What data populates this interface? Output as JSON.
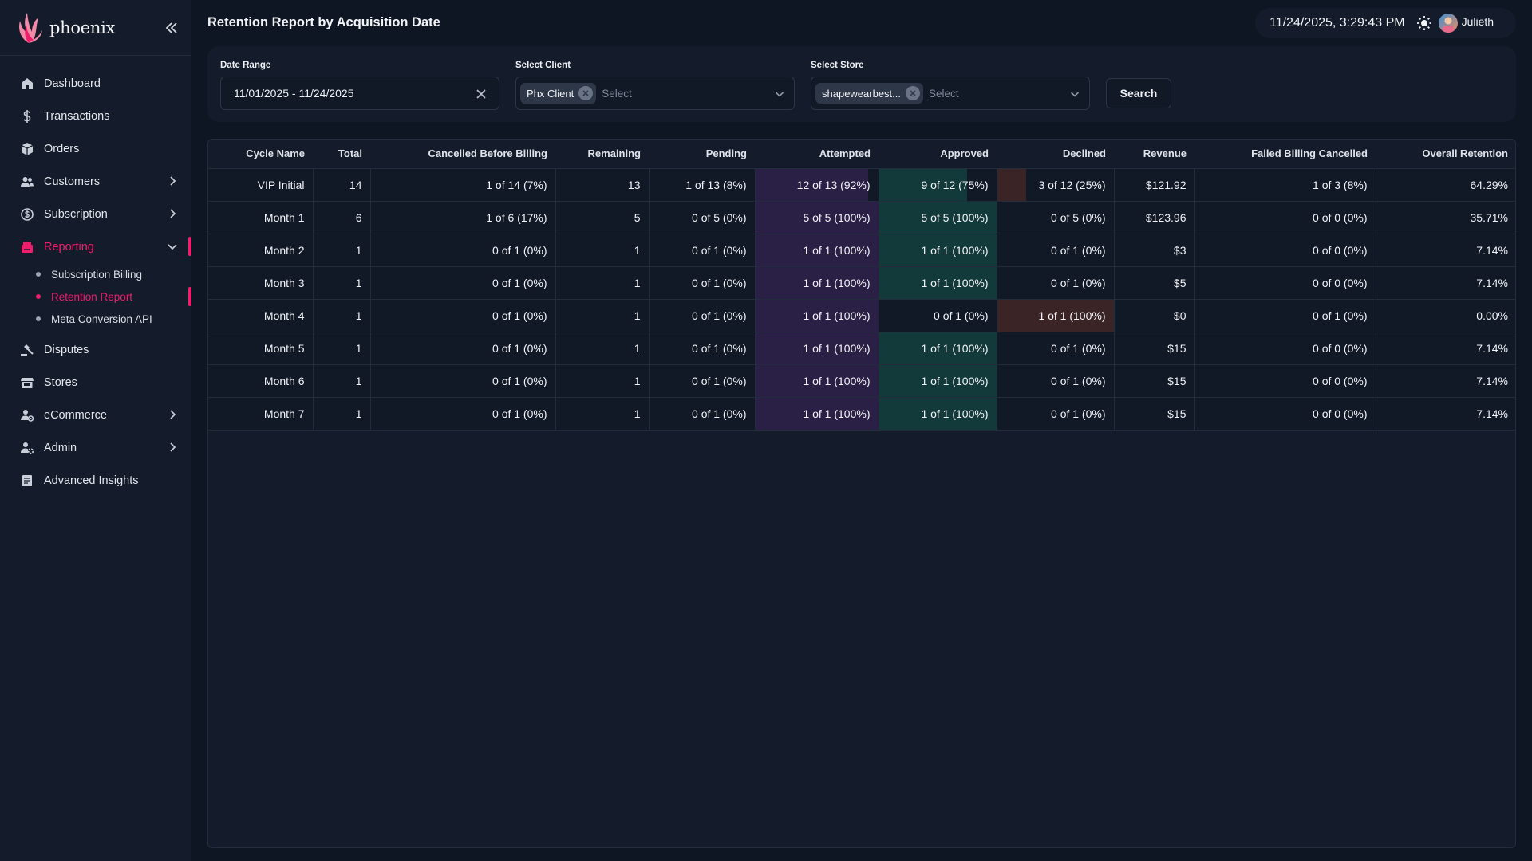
{
  "brand": {
    "name": "phoenix"
  },
  "nav": {
    "items": [
      {
        "key": "dashboard",
        "label": "Dashboard",
        "icon": "home-icon",
        "chevron": false
      },
      {
        "key": "transactions",
        "label": "Transactions",
        "icon": "dollar-icon",
        "chevron": false
      },
      {
        "key": "orders",
        "label": "Orders",
        "icon": "box-icon",
        "chevron": false
      },
      {
        "key": "customers",
        "label": "Customers",
        "icon": "users-icon",
        "chevron": true
      },
      {
        "key": "subscription",
        "label": "Subscription",
        "icon": "subscription-icon",
        "chevron": true
      },
      {
        "key": "reporting",
        "label": "Reporting",
        "icon": "report-icon",
        "chevron": true,
        "active": true
      },
      {
        "key": "disputes",
        "label": "Disputes",
        "icon": "gavel-icon",
        "chevron": false
      },
      {
        "key": "stores",
        "label": "Stores",
        "icon": "store-icon",
        "chevron": false
      },
      {
        "key": "ecommerce",
        "label": "eCommerce",
        "icon": "ecommerce-icon",
        "chevron": true
      },
      {
        "key": "admin",
        "label": "Admin",
        "icon": "admin-icon",
        "chevron": true
      },
      {
        "key": "advanced",
        "label": "Advanced Insights",
        "icon": "insights-icon",
        "chevron": false
      }
    ],
    "reporting_sub": [
      {
        "label": "Subscription Billing",
        "active": false
      },
      {
        "label": "Retention Report",
        "active": true
      },
      {
        "label": "Meta Conversion API",
        "active": false
      }
    ]
  },
  "header": {
    "title": "Retention Report by Acquisition Date",
    "datetime": "11/24/2025, 3:29:43 PM",
    "user": "Julieth"
  },
  "filters": {
    "date_label": "Date Range",
    "date_value": "11/01/2025 - 11/24/2025",
    "client_label": "Select Client",
    "client_chip": "Phx Client",
    "client_placeholder": "Select",
    "store_label": "Select Store",
    "store_chip": "shapewearbest...",
    "store_placeholder": "Select",
    "search_label": "Search"
  },
  "colors": {
    "accent": "#ee1e6c",
    "attempted_fill": "#2a1f45",
    "approved_fill": "#133a3a",
    "declined_fill": "#3a2426"
  },
  "table": {
    "columns": [
      "Cycle Name",
      "Total",
      "Cancelled Before Billing",
      "Remaining",
      "Pending",
      "Attempted",
      "Approved",
      "Declined",
      "Revenue",
      "Failed Billing Cancelled",
      "Overall Retention"
    ],
    "rows": [
      {
        "cycle": "VIP Initial",
        "total": "14",
        "cancelled": "1 of 14 (7%)",
        "remaining": "13",
        "pending": "1 of 13 (8%)",
        "attempted": "12 of 13 (92%)",
        "attempted_pct": 92,
        "approved": "9 of 12 (75%)",
        "approved_pct": 75,
        "declined": "3 of 12 (25%)",
        "declined_pct": 25,
        "revenue": "$121.92",
        "failed": "1 of 3 (8%)",
        "retention": "64.29%"
      },
      {
        "cycle": "Month 1",
        "total": "6",
        "cancelled": "1 of 6 (17%)",
        "remaining": "5",
        "pending": "0 of 5 (0%)",
        "attempted": "5 of 5 (100%)",
        "attempted_pct": 100,
        "approved": "5 of 5 (100%)",
        "approved_pct": 100,
        "declined": "0 of 5 (0%)",
        "declined_pct": 0,
        "revenue": "$123.96",
        "failed": "0 of 0 (0%)",
        "retention": "35.71%"
      },
      {
        "cycle": "Month 2",
        "total": "1",
        "cancelled": "0 of 1 (0%)",
        "remaining": "1",
        "pending": "0 of 1 (0%)",
        "attempted": "1 of 1 (100%)",
        "attempted_pct": 100,
        "approved": "1 of 1 (100%)",
        "approved_pct": 100,
        "declined": "0 of 1 (0%)",
        "declined_pct": 0,
        "revenue": "$3",
        "failed": "0 of 0 (0%)",
        "retention": "7.14%"
      },
      {
        "cycle": "Month 3",
        "total": "1",
        "cancelled": "0 of 1 (0%)",
        "remaining": "1",
        "pending": "0 of 1 (0%)",
        "attempted": "1 of 1 (100%)",
        "attempted_pct": 100,
        "approved": "1 of 1 (100%)",
        "approved_pct": 100,
        "declined": "0 of 1 (0%)",
        "declined_pct": 0,
        "revenue": "$5",
        "failed": "0 of 0 (0%)",
        "retention": "7.14%"
      },
      {
        "cycle": "Month 4",
        "total": "1",
        "cancelled": "0 of 1 (0%)",
        "remaining": "1",
        "pending": "0 of 1 (0%)",
        "attempted": "1 of 1 (100%)",
        "attempted_pct": 100,
        "approved": "0 of 1 (0%)",
        "approved_pct": 0,
        "declined": "1 of 1 (100%)",
        "declined_pct": 100,
        "revenue": "$0",
        "failed": "0 of 1 (0%)",
        "retention": "0.00%"
      },
      {
        "cycle": "Month 5",
        "total": "1",
        "cancelled": "0 of 1 (0%)",
        "remaining": "1",
        "pending": "0 of 1 (0%)",
        "attempted": "1 of 1 (100%)",
        "attempted_pct": 100,
        "approved": "1 of 1 (100%)",
        "approved_pct": 100,
        "declined": "0 of 1 (0%)",
        "declined_pct": 0,
        "revenue": "$15",
        "failed": "0 of 0 (0%)",
        "retention": "7.14%"
      },
      {
        "cycle": "Month 6",
        "total": "1",
        "cancelled": "0 of 1 (0%)",
        "remaining": "1",
        "pending": "0 of 1 (0%)",
        "attempted": "1 of 1 (100%)",
        "attempted_pct": 100,
        "approved": "1 of 1 (100%)",
        "approved_pct": 100,
        "declined": "0 of 1 (0%)",
        "declined_pct": 0,
        "revenue": "$15",
        "failed": "0 of 0 (0%)",
        "retention": "7.14%"
      },
      {
        "cycle": "Month 7",
        "total": "1",
        "cancelled": "0 of 1 (0%)",
        "remaining": "1",
        "pending": "0 of 1 (0%)",
        "attempted": "1 of 1 (100%)",
        "attempted_pct": 100,
        "approved": "1 of 1 (100%)",
        "approved_pct": 100,
        "declined": "0 of 1 (0%)",
        "declined_pct": 0,
        "revenue": "$15",
        "failed": "0 of 0 (0%)",
        "retention": "7.14%"
      }
    ]
  }
}
